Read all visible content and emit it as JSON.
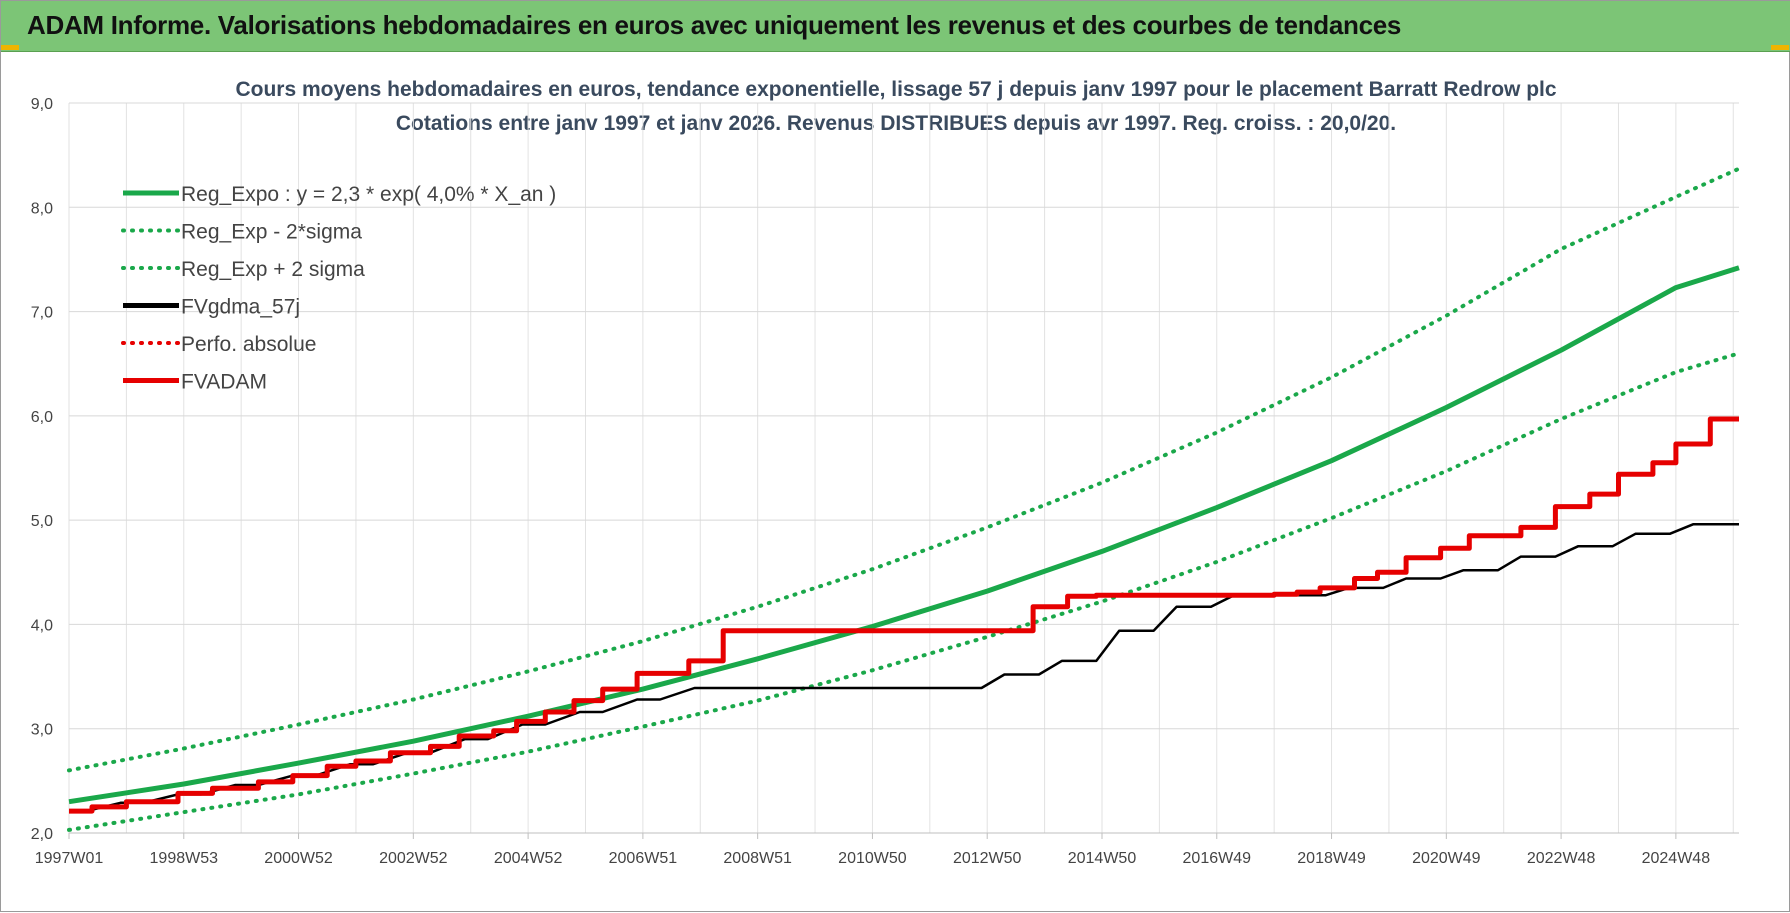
{
  "header": {
    "title": "ADAM Informe. Valorisations hebdomadaires en euros avec uniquement les revenus et des courbes de tendances"
  },
  "chart_data": {
    "type": "line",
    "title": "Cours moyens hebdomadaires en euros, tendance exponentielle, lissage 57 j depuis janv 1997  pour le placement Barratt Redrow plc",
    "subtitle": "Cotations entre janv 1997 et janv 2026. Revenus DISTRIBUES depuis avr 1997.  Reg. croiss. : 20,0/20.",
    "xlabel": "",
    "ylabel": "",
    "x_ticks": [
      "1997W01",
      "1998W53",
      "2000W52",
      "2002W52",
      "2004W52",
      "2006W51",
      "2008W51",
      "2010W50",
      "2012W50",
      "2014W50",
      "2016W49",
      "2018W49",
      "2020W49",
      "2022W48",
      "2024W48"
    ],
    "x_tick_years": [
      1997.0,
      1999.0,
      2001.0,
      2003.0,
      2005.0,
      2007.0,
      2009.0,
      2011.0,
      2013.0,
      2015.0,
      2017.0,
      2019.0,
      2021.0,
      2023.0,
      2025.0
    ],
    "xlim": [
      1997.0,
      2026.1
    ],
    "y_ticks": [
      "2,0",
      "3,0",
      "4,0",
      "5,0",
      "6,0",
      "7,0",
      "8,0",
      "9,0"
    ],
    "ylim": [
      2.0,
      9.0
    ],
    "grid": true,
    "legend_placement": "top-left",
    "series": [
      {
        "name": "Reg_Expo : y = 2,3 * exp( 4,0% *  X_an )",
        "color": "#1aa84a",
        "style": "solid",
        "x": [
          1997,
          1999,
          2001,
          2003,
          2005,
          2007,
          2009,
          2011,
          2013,
          2015,
          2017,
          2019,
          2021,
          2023,
          2025,
          2026.1
        ],
        "values": [
          2.3,
          2.47,
          2.67,
          2.88,
          3.12,
          3.38,
          3.67,
          3.98,
          4.32,
          4.7,
          5.12,
          5.57,
          6.08,
          6.63,
          7.23,
          7.42
        ]
      },
      {
        "name": "Reg_Exp - 2*sigma",
        "color": "#1aa84a",
        "style": "dotted",
        "x": [
          1997,
          1999,
          2001,
          2003,
          2005,
          2007,
          2009,
          2011,
          2013,
          2015,
          2017,
          2019,
          2021,
          2023,
          2025,
          2026.1
        ],
        "values": [
          2.03,
          2.2,
          2.37,
          2.57,
          2.78,
          3.02,
          3.27,
          3.56,
          3.88,
          4.22,
          4.6,
          5.02,
          5.47,
          5.97,
          6.42,
          6.6
        ]
      },
      {
        "name": "Reg_Exp + 2 sigma",
        "color": "#1aa84a",
        "style": "dotted",
        "x": [
          1997,
          1999,
          2001,
          2003,
          2005,
          2007,
          2009,
          2011,
          2013,
          2015,
          2017,
          2019,
          2021,
          2023,
          2025,
          2026.1
        ],
        "values": [
          2.6,
          2.81,
          3.04,
          3.28,
          3.55,
          3.84,
          4.17,
          4.53,
          4.93,
          5.36,
          5.84,
          6.37,
          6.96,
          7.6,
          8.1,
          8.37
        ]
      },
      {
        "name": "FVgdma_57j",
        "color": "#000000",
        "style": "solid",
        "x": [
          1997.0,
          1997.3,
          1997.9,
          1998.3,
          1998.9,
          1999.3,
          1999.9,
          2000.3,
          2000.9,
          2001.3,
          2001.9,
          2002.3,
          2002.9,
          2003.3,
          2003.9,
          2004.3,
          2004.9,
          2005.3,
          2005.9,
          2006.3,
          2006.9,
          2007.3,
          2007.9,
          2012.9,
          2013.3,
          2013.9,
          2014.3,
          2014.9,
          2015.3,
          2015.9,
          2016.3,
          2016.9,
          2017.3,
          2017.9,
          2018.3,
          2018.9,
          2019.3,
          2019.9,
          2020.3,
          2020.9,
          2021.3,
          2021.9,
          2022.3,
          2022.9,
          2023.3,
          2023.9,
          2024.3,
          2024.9,
          2025.3,
          2025.9,
          2026.1
        ],
        "values": [
          2.21,
          2.21,
          2.29,
          2.29,
          2.37,
          2.37,
          2.46,
          2.46,
          2.55,
          2.55,
          2.66,
          2.66,
          2.77,
          2.77,
          2.9,
          2.9,
          3.04,
          3.04,
          3.16,
          3.16,
          3.28,
          3.28,
          3.39,
          3.39,
          3.52,
          3.52,
          3.65,
          3.65,
          3.94,
          3.94,
          4.17,
          4.17,
          4.28,
          4.28,
          4.28,
          4.28,
          4.35,
          4.35,
          4.44,
          4.44,
          4.52,
          4.52,
          4.65,
          4.65,
          4.75,
          4.75,
          4.87,
          4.87,
          4.96,
          4.96,
          4.96
        ]
      },
      {
        "name": "Perfo. absolue",
        "color": "#e60000",
        "style": "dotted",
        "x": [],
        "values": []
      },
      {
        "name": "FVADAM",
        "color": "#e60000",
        "style": "solid",
        "x": [
          1997.0,
          1997.4,
          1997.4,
          1998.0,
          1998.0,
          1998.9,
          1998.9,
          1999.5,
          1999.5,
          2000.3,
          2000.3,
          2000.9,
          2000.9,
          2001.5,
          2001.5,
          2002.0,
          2002.0,
          2002.6,
          2002.6,
          2003.3,
          2003.3,
          2003.8,
          2003.8,
          2004.4,
          2004.4,
          2004.8,
          2004.8,
          2005.3,
          2005.3,
          2005.8,
          2005.8,
          2006.3,
          2006.3,
          2006.9,
          2006.9,
          2007.8,
          2007.8,
          2008.4,
          2008.4,
          2013.8,
          2013.8,
          2014.4,
          2014.4,
          2014.9,
          2014.9,
          2015.5,
          2015.5,
          2016.0,
          2016.0,
          2016.8,
          2016.8,
          2017.3,
          2017.3,
          2018.0,
          2018.0,
          2018.4,
          2018.4,
          2018.8,
          2018.8,
          2019.4,
          2019.4,
          2019.8,
          2019.8,
          2020.3,
          2020.3,
          2020.9,
          2020.9,
          2021.4,
          2021.4,
          2022.3,
          2022.3,
          2022.9,
          2022.9,
          2023.5,
          2023.5,
          2024.0,
          2024.0,
          2024.6,
          2024.6,
          2025.0,
          2025.0,
          2025.6,
          2025.6,
          2026.1
        ],
        "values": [
          2.21,
          2.21,
          2.25,
          2.25,
          2.3,
          2.3,
          2.38,
          2.38,
          2.43,
          2.43,
          2.49,
          2.49,
          2.55,
          2.55,
          2.64,
          2.64,
          2.69,
          2.69,
          2.77,
          2.77,
          2.83,
          2.83,
          2.93,
          2.93,
          2.98,
          2.98,
          3.07,
          3.07,
          3.16,
          3.16,
          3.27,
          3.27,
          3.38,
          3.38,
          3.53,
          3.53,
          3.65,
          3.65,
          3.94,
          3.94,
          4.17,
          4.17,
          4.27,
          4.27,
          4.28,
          4.28,
          4.28,
          4.28,
          4.28,
          4.28,
          4.28,
          4.28,
          4.28,
          4.28,
          4.29,
          4.29,
          4.31,
          4.31,
          4.35,
          4.35,
          4.44,
          4.44,
          4.5,
          4.5,
          4.64,
          4.64,
          4.73,
          4.73,
          4.85,
          4.85,
          4.93,
          4.93,
          5.13,
          5.13,
          5.25,
          5.25,
          5.44,
          5.44,
          5.55,
          5.55,
          5.73,
          5.73,
          5.97,
          5.97
        ]
      }
    ]
  }
}
